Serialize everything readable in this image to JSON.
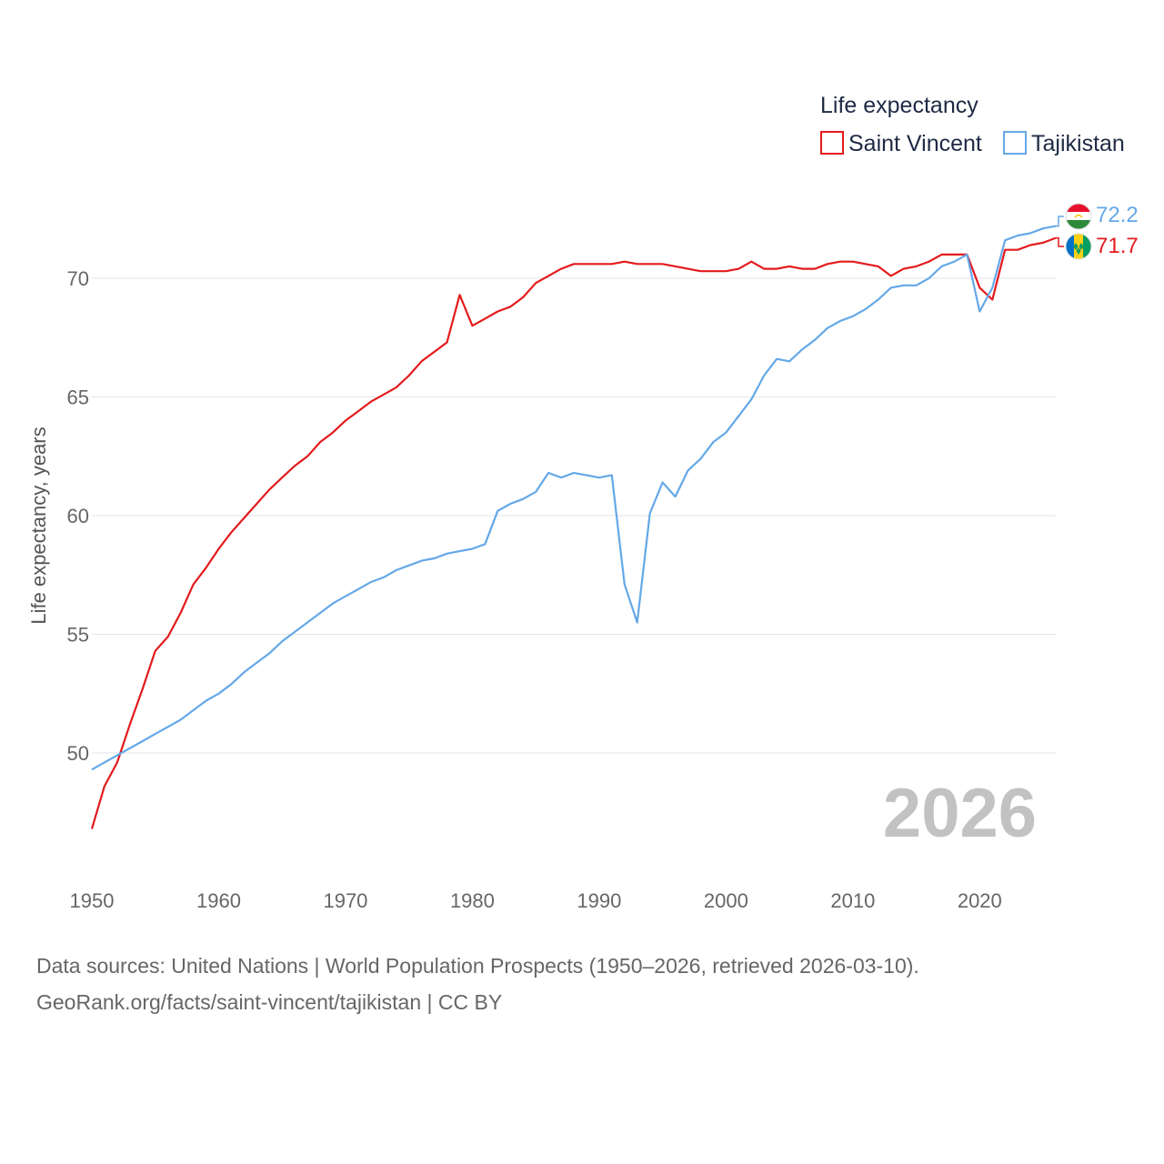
{
  "chart_data": {
    "type": "line",
    "title": "",
    "legend_title": "Life expectancy",
    "legend_position": "top-right",
    "ylabel": "Life expectancy, years",
    "xlabel": "",
    "xlim": [
      1950,
      2026
    ],
    "ylim": [
      46.5,
      73
    ],
    "x_ticks": [
      1950,
      1960,
      1970,
      1980,
      1990,
      2000,
      2010,
      2020
    ],
    "x_tick_labels": [
      "1950",
      "1960",
      "1970",
      "1980",
      "1990",
      "2000",
      "2010",
      "2020"
    ],
    "y_ticks": [
      50,
      55,
      60,
      65,
      70
    ],
    "y_tick_labels": [
      "50",
      "55",
      "60",
      "65",
      "70"
    ],
    "grid": true,
    "current_year": "2026",
    "series": [
      {
        "name": "Saint Vincent",
        "color": "#e31a1c",
        "flag_icon": "saint-vincent-flag-icon",
        "end_label": "71.7",
        "start_year": 1950,
        "values": [
          46.8,
          48.6,
          49.6,
          51.2,
          52.7,
          54.3,
          54.9,
          55.9,
          57.1,
          57.8,
          58.6,
          59.3,
          59.9,
          60.5,
          61.1,
          61.6,
          62.1,
          62.5,
          63.1,
          63.5,
          64.0,
          64.4,
          64.8,
          65.1,
          65.4,
          65.9,
          66.5,
          66.9,
          67.3,
          69.3,
          68.0,
          68.3,
          68.6,
          68.8,
          69.2,
          69.8,
          70.1,
          70.4,
          70.6,
          70.6,
          70.6,
          70.6,
          70.7,
          70.6,
          70.6,
          70.6,
          70.5,
          70.4,
          70.3,
          70.3,
          70.3,
          70.4,
          70.7,
          70.4,
          70.4,
          70.5,
          70.4,
          70.4,
          70.6,
          70.7,
          70.7,
          70.6,
          70.5,
          70.1,
          70.4,
          70.5,
          70.7,
          71.0,
          71.0,
          71.0,
          69.6,
          69.1,
          71.2,
          71.2,
          71.4,
          71.5,
          71.7
        ]
      },
      {
        "name": "Tajikistan",
        "color": "#64a8e8",
        "flag_icon": "tajikistan-flag-icon",
        "end_label": "72.2",
        "start_year": 1950,
        "values": [
          49.3,
          49.6,
          49.9,
          50.2,
          50.5,
          50.8,
          51.1,
          51.4,
          51.8,
          52.2,
          52.5,
          52.9,
          53.4,
          53.8,
          54.2,
          54.7,
          55.1,
          55.5,
          55.9,
          56.3,
          56.6,
          56.9,
          57.2,
          57.4,
          57.7,
          57.9,
          58.1,
          58.2,
          58.4,
          58.5,
          58.6,
          58.8,
          60.2,
          60.5,
          60.7,
          61.0,
          61.8,
          61.6,
          61.8,
          61.7,
          61.6,
          61.7,
          57.1,
          55.5,
          60.1,
          61.4,
          60.8,
          61.9,
          62.4,
          63.1,
          63.5,
          64.2,
          64.9,
          65.9,
          66.6,
          66.5,
          67.0,
          67.4,
          67.9,
          68.2,
          68.4,
          68.7,
          69.1,
          69.6,
          69.7,
          69.7,
          70.0,
          70.5,
          70.7,
          71.0,
          68.6,
          69.6,
          71.6,
          71.8,
          71.9,
          72.1,
          72.2
        ]
      }
    ]
  },
  "footer": {
    "sources_line": "Data sources: United Nations | World Population Prospects (1950–2026, retrieved 2026-03-10).",
    "credit_line": "GeoRank.org/facts/saint-vincent/tajikistan | CC BY"
  }
}
